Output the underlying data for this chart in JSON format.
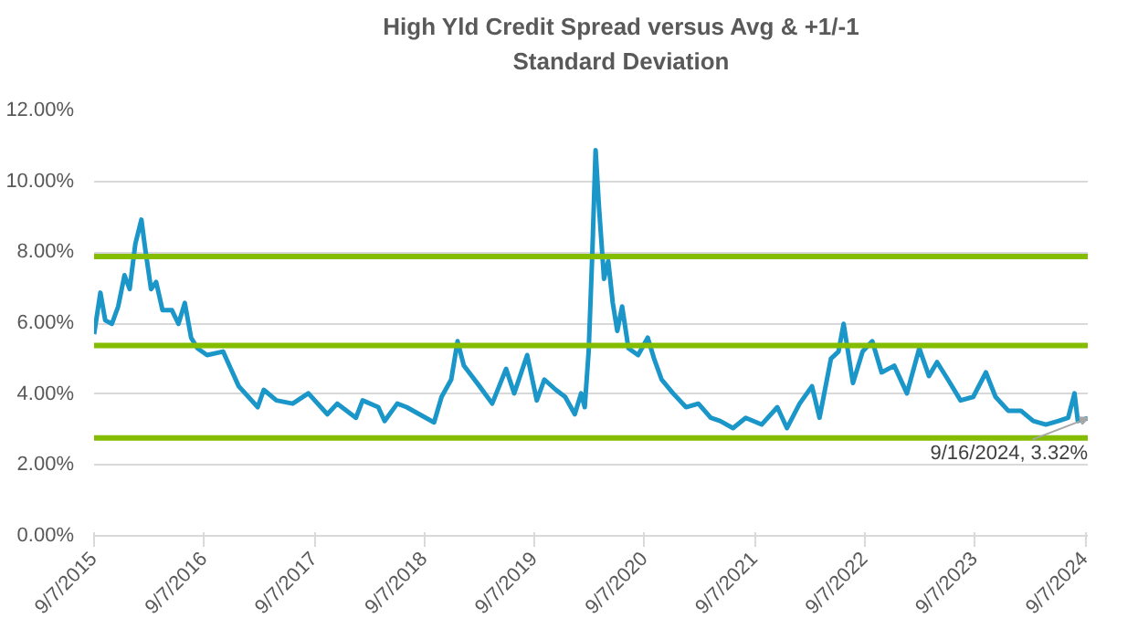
{
  "chart_data": {
    "type": "line",
    "title": "High Yld Credit Spread versus Avg & +1/-1 Standard Deviation",
    "x": [
      "2015-09-07",
      "2015-09-28",
      "2015-10-14",
      "2015-11-05",
      "2015-11-26",
      "2015-12-17",
      "2016-01-03",
      "2016-01-22",
      "2016-02-11",
      "2016-02-23",
      "2016-03-14",
      "2016-03-31",
      "2016-04-21",
      "2016-05-22",
      "2016-06-13",
      "2016-07-04",
      "2016-07-25",
      "2016-08-15",
      "2016-09-16",
      "2016-11-08",
      "2016-11-29",
      "2016-12-30",
      "2017-03-03",
      "2017-03-23",
      "2017-05-04",
      "2017-06-27",
      "2017-08-18",
      "2017-10-20",
      "2017-11-22",
      "2018-01-23",
      "2018-02-14",
      "2018-04-07",
      "2018-04-28",
      "2018-06-09",
      "2018-07-10",
      "2018-08-21",
      "2018-10-09",
      "2018-11-03",
      "2018-12-05",
      "2018-12-26",
      "2019-01-16",
      "2019-03-09",
      "2019-04-20",
      "2019-06-05",
      "2019-07-02",
      "2019-08-14",
      "2019-09-15",
      "2019-10-10",
      "2019-11-17",
      "2019-12-18",
      "2020-01-19",
      "2020-02-09",
      "2020-02-21",
      "2020-03-05",
      "2020-03-17",
      "2020-03-28",
      "2020-04-08",
      "2020-04-25",
      "2020-05-09",
      "2020-05-24",
      "2020-06-08",
      "2020-06-24",
      "2020-07-15",
      "2020-08-16",
      "2020-09-17",
      "2020-10-08",
      "2020-11-02",
      "2020-12-10",
      "2021-01-22",
      "2021-03-04",
      "2021-04-14",
      "2021-05-15",
      "2021-06-27",
      "2021-08-08",
      "2021-09-30",
      "2021-11-21",
      "2021-12-23",
      "2022-02-03",
      "2022-03-16",
      "2022-04-10",
      "2022-05-18",
      "2022-06-12",
      "2022-06-29",
      "2022-07-30",
      "2022-08-31",
      "2022-10-02",
      "2022-11-02",
      "2022-12-14",
      "2023-01-25",
      "2023-03-07",
      "2023-04-08",
      "2023-05-05",
      "2023-06-10",
      "2023-07-22",
      "2023-09-02",
      "2023-10-14",
      "2023-11-15",
      "2023-12-27",
      "2024-02-07",
      "2024-03-19",
      "2024-04-30",
      "2024-06-11",
      "2024-07-13",
      "2024-08-03",
      "2024-08-14",
      "2024-09-16"
    ],
    "series": [
      {
        "color": "#1a96c8",
        "values": [
          5.69,
          6.86,
          6.08,
          5.98,
          6.47,
          7.35,
          6.96,
          8.24,
          8.92,
          8.14,
          6.96,
          7.16,
          6.37,
          6.37,
          5.98,
          6.57,
          5.59,
          5.29,
          5.1,
          5.2,
          4.8,
          4.22,
          3.63,
          4.12,
          3.82,
          3.73,
          4.02,
          3.43,
          3.73,
          3.33,
          3.82,
          3.63,
          3.24,
          3.73,
          3.63,
          3.43,
          3.2,
          3.92,
          4.41,
          5.49,
          4.8,
          4.22,
          3.73,
          4.71,
          4.02,
          5.1,
          3.82,
          4.41,
          4.12,
          3.92,
          3.43,
          4.02,
          3.63,
          5.2,
          7.94,
          10.88,
          9.31,
          7.25,
          7.75,
          6.57,
          5.78,
          6.47,
          5.29,
          5.1,
          5.59,
          5.0,
          4.41,
          4.02,
          3.63,
          3.73,
          3.33,
          3.24,
          3.04,
          3.33,
          3.14,
          3.63,
          3.04,
          3.73,
          4.22,
          3.33,
          5.0,
          5.2,
          5.98,
          4.31,
          5.2,
          5.49,
          4.61,
          4.8,
          4.02,
          5.29,
          4.51,
          4.9,
          4.41,
          3.82,
          3.92,
          4.61,
          3.92,
          3.53,
          3.53,
          3.24,
          3.14,
          3.24,
          3.33,
          4.02,
          3.24,
          3.32
        ]
      }
    ],
    "xlim": [
      "2015-09-07",
      "2024-09-16"
    ],
    "xticks": [
      {
        "value": "2015-09-07",
        "label": "9/7/2015"
      },
      {
        "value": "2016-09-07",
        "label": "9/7/2016"
      },
      {
        "value": "2017-09-07",
        "label": "9/7/2017"
      },
      {
        "value": "2018-09-07",
        "label": "9/7/2018"
      },
      {
        "value": "2019-09-07",
        "label": "9/7/2019"
      },
      {
        "value": "2020-09-07",
        "label": "9/7/2020"
      },
      {
        "value": "2021-09-07",
        "label": "9/7/2021"
      },
      {
        "value": "2022-09-07",
        "label": "9/7/2022"
      },
      {
        "value": "2023-09-07",
        "label": "9/7/2023"
      },
      {
        "value": "2024-09-07",
        "label": "9/7/2024"
      }
    ],
    "ylim": [
      0,
      12
    ],
    "yticks": [
      {
        "value": 0,
        "label": "0.00%"
      },
      {
        "value": 2,
        "label": "2.00%"
      },
      {
        "value": 4,
        "label": "4.00%"
      },
      {
        "value": 6,
        "label": "6.00%"
      },
      {
        "value": 8,
        "label": "8.00%"
      },
      {
        "value": 10,
        "label": "10.00%"
      },
      {
        "value": 12,
        "label": "12.00%"
      }
    ],
    "ref_lines": [
      {
        "axis": "y",
        "value": 7.88,
        "color": "#84bd00"
      },
      {
        "axis": "y",
        "value": 5.37,
        "color": "#84bd00"
      },
      {
        "axis": "y",
        "value": 2.76,
        "color": "#84bd00"
      }
    ],
    "annotations": [
      {
        "text": "9/16/2024, 3.32%",
        "x": "2024-09-16",
        "y": 3.32
      }
    ],
    "grid": "y",
    "line_style": "solid",
    "marker": "none"
  }
}
